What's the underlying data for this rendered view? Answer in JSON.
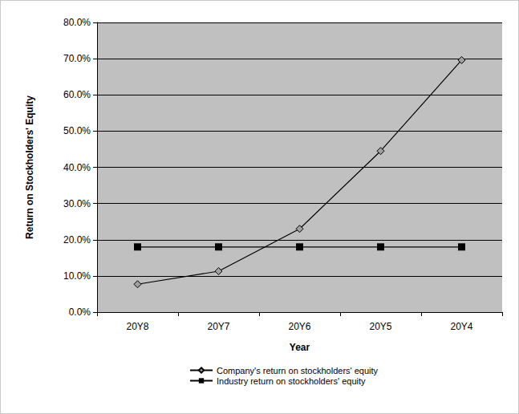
{
  "chart_data": {
    "type": "line",
    "categories": [
      "20Y8",
      "20Y7",
      "20Y6",
      "20Y5",
      "20Y4"
    ],
    "x_label": "Year",
    "y_label": "Return on Stockholders' Equity",
    "ylim": [
      0,
      80
    ],
    "yticks": [
      {
        "value": 0,
        "label": "0.0%"
      },
      {
        "value": 10,
        "label": "10.0%"
      },
      {
        "value": 20,
        "label": "20.0%"
      },
      {
        "value": 30,
        "label": "30.0%"
      },
      {
        "value": 40,
        "label": "40.0%"
      },
      {
        "value": 50,
        "label": "50.0%"
      },
      {
        "value": 60,
        "label": "60.0%"
      },
      {
        "value": 70,
        "label": "70.0%"
      },
      {
        "value": 80,
        "label": "80.0%"
      }
    ],
    "grid": true,
    "legend": "bottom",
    "series": [
      {
        "name": "Company's return on stockholders' equity",
        "color": "#a0a0a0",
        "marker": "diamond",
        "line_style": "solid",
        "values": [
          7.7,
          11.3,
          23.0,
          44.5,
          69.6
        ]
      },
      {
        "name": "Industry return on stockholders' equity",
        "color": "#000000",
        "marker": "square",
        "line_style": "solid",
        "values": [
          18.0,
          18.0,
          18.0,
          18.0,
          18.0
        ]
      }
    ]
  }
}
